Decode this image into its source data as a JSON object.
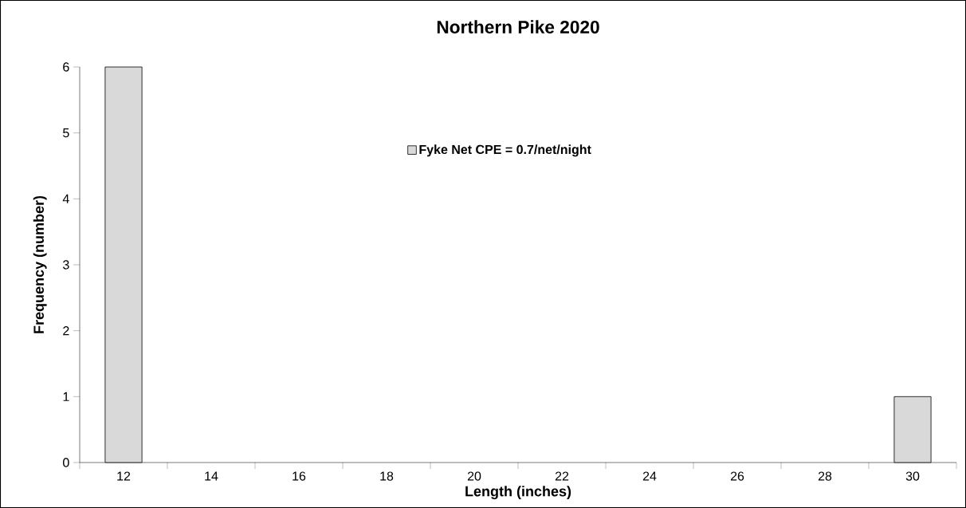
{
  "chart_data": {
    "type": "bar",
    "title": "Northern Pike 2020",
    "xlabel": "Length (inches)",
    "ylabel": "Frequency (number)",
    "categories": [
      "12",
      "14",
      "16",
      "18",
      "20",
      "22",
      "24",
      "26",
      "28",
      "30"
    ],
    "series": [
      {
        "name": "Fyke Net CPE = 0.7/net/night",
        "color": "#d9d9d9",
        "values": [
          6,
          0,
          0,
          0,
          0,
          0,
          0,
          0,
          0,
          1
        ]
      }
    ],
    "ylim": [
      0,
      6
    ],
    "yticks": [
      0,
      1,
      2,
      3,
      4,
      5,
      6
    ],
    "legend": "top",
    "grid": false
  }
}
